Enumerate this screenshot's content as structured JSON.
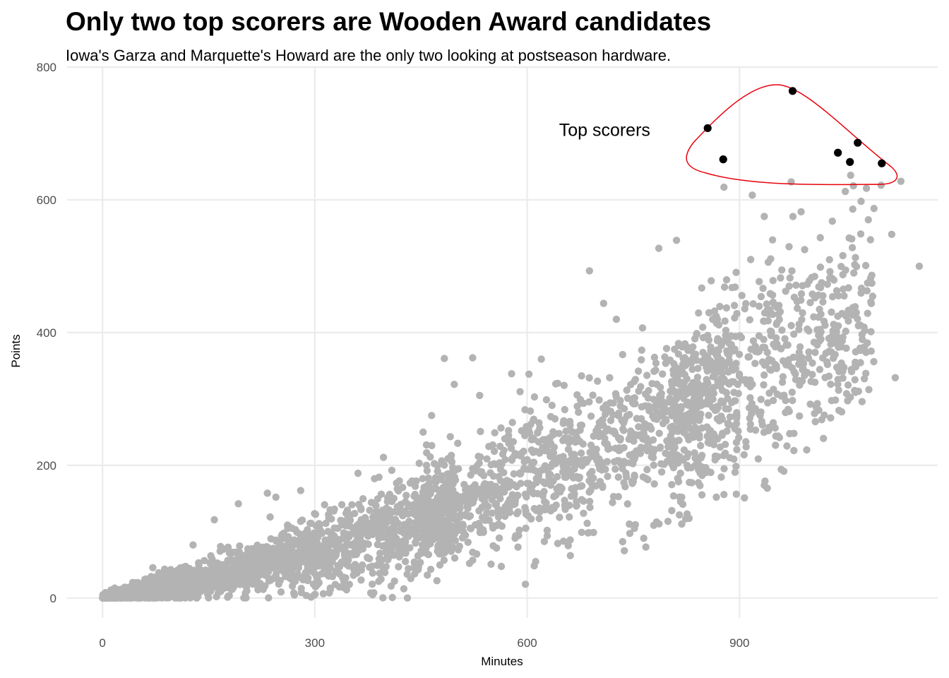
{
  "chart_data": {
    "type": "scatter",
    "title": "Only two top scorers are Wooden Award candidates",
    "subtitle": "Iowa's Garza and Marquette's Howard are the only two looking at postseason hardware.",
    "xlabel": "Minutes",
    "ylabel": "Points",
    "xlim": [
      -50,
      1180
    ],
    "ylim": [
      -30,
      800
    ],
    "x_ticks": [
      0,
      300,
      600,
      900
    ],
    "y_ticks": [
      0,
      200,
      400,
      600,
      800
    ],
    "grid": true,
    "colors": {
      "background_points": "#b3b3b3",
      "highlight_points": "#000000",
      "enclosure": "#e8000b",
      "grid": "#ebebeb"
    },
    "series": [
      {
        "role": "background",
        "summary": "approx. 5000 players; points rise with minutes (roughly 0.38 pts/min), spread widens with minutes",
        "points": [
          [
            1128,
            628
          ],
          [
            1100,
            622
          ],
          [
            987,
            582
          ],
          [
            1090,
            587
          ],
          [
            1060,
            586
          ],
          [
            935,
            575
          ],
          [
            1115,
            548
          ],
          [
            1082,
            570
          ],
          [
            944,
            511
          ],
          [
            688,
            493
          ],
          [
            811,
            539
          ],
          [
            786,
            527
          ],
          [
            763,
            407
          ],
          [
            483,
            361
          ],
          [
            523,
            362
          ],
          [
            1120,
            332
          ],
          [
            1012,
            283
          ],
          [
            935,
            170
          ],
          [
            907,
            151
          ],
          [
            878,
            156
          ],
          [
            1044,
            354
          ],
          [
            1073,
            397
          ],
          [
            726,
            420
          ],
          [
            708,
            444
          ],
          [
            860,
            478
          ],
          [
            848,
            408
          ],
          [
            620,
            360
          ],
          [
            590,
            311
          ],
          [
            578,
            338
          ],
          [
            497,
            322
          ],
          [
            465,
            275
          ],
          [
            453,
            250
          ],
          [
            397,
            212
          ],
          [
            361,
            188
          ],
          [
            280,
            162
          ],
          [
            245,
            152
          ],
          [
            233,
            158
          ],
          [
            192,
            142
          ],
          [
            128,
            80
          ],
          [
            158,
            118
          ],
          [
            661,
            64
          ],
          [
            658,
            79
          ],
          [
            677,
            99
          ],
          [
            612,
            55
          ],
          [
            549,
            51
          ],
          [
            523,
            57
          ],
          [
            446,
            43
          ],
          [
            428,
            55
          ],
          [
            339,
            31
          ],
          [
            301,
            17
          ],
          [
            918,
            607
          ],
          [
            878,
            619
          ],
          [
            1057,
            637
          ],
          [
            973,
            627
          ],
          [
            1154,
            500
          ],
          [
            1037,
            402
          ],
          [
            1012,
            469
          ],
          [
            953,
            438
          ],
          [
            992,
            525
          ],
          [
            1046,
            516
          ]
        ]
      },
      {
        "role": "highlight",
        "name": "Top scorers",
        "points": [
          [
            975,
            764
          ],
          [
            855,
            708
          ],
          [
            877,
            661
          ],
          [
            1039,
            671
          ],
          [
            1067,
            686
          ],
          [
            1056,
            657
          ],
          [
            1101,
            655
          ]
        ]
      }
    ],
    "annotation": {
      "text": "Top scorers",
      "x": 645,
      "y": 696
    }
  }
}
